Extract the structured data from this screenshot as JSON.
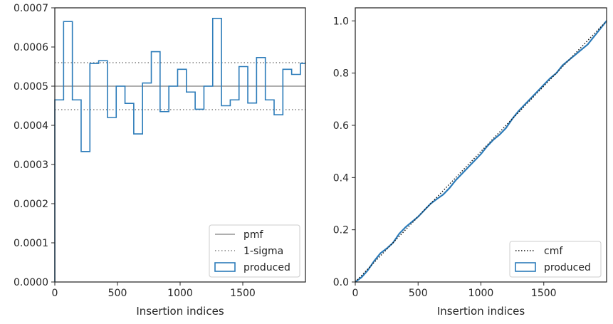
{
  "chart_data": [
    {
      "type": "histogram",
      "title": "",
      "xlabel": "Insertion indices",
      "ylabel": "",
      "xlim": [
        0,
        2000
      ],
      "ylim": [
        0,
        0.0007
      ],
      "xticks": [
        0,
        500,
        1000,
        1500
      ],
      "xtick_labels": [
        "0",
        "500",
        "1000",
        "1500"
      ],
      "yticks": [
        0,
        0.0001,
        0.0002,
        0.0003,
        0.0004,
        0.0005,
        0.0006,
        0.0007
      ],
      "ytick_labels": [
        "0.0000",
        "0.0001",
        "0.0002",
        "0.0003",
        "0.0004",
        "0.0005",
        "0.0006",
        "0.0007"
      ],
      "bin_width": 70,
      "bin_edges": [
        0,
        70,
        140,
        210,
        280,
        350,
        420,
        490,
        560,
        630,
        700,
        770,
        840,
        910,
        980,
        1050,
        1120,
        1190,
        1260,
        1330,
        1400,
        1470,
        1540,
        1610,
        1680,
        1750,
        1820,
        1890,
        1960,
        2000
      ],
      "bin_values": [
        0.000465,
        0.000665,
        0.000465,
        0.000333,
        0.000558,
        0.000565,
        0.00042,
        0.0005,
        0.000456,
        0.000378,
        0.000508,
        0.000588,
        0.000435,
        0.0005,
        0.000543,
        0.000485,
        0.000441,
        0.0005,
        0.000673,
        0.00045,
        0.000465,
        0.00055,
        0.000457,
        0.000573,
        0.000465,
        0.000427,
        0.000543,
        0.00053,
        0.000558
      ],
      "pmf": 0.0005,
      "sigma_lines": [
        0.00044,
        0.00056
      ],
      "series": [
        {
          "name": "pmf",
          "color": "#7f7f7f",
          "style": "solid"
        },
        {
          "name": "1-sigma",
          "color": "#7f7f7f",
          "style": "dotted"
        },
        {
          "name": "produced",
          "color": "#2b7bb9",
          "style": "step"
        }
      ],
      "legend": "lower-right"
    },
    {
      "type": "line",
      "title": "",
      "xlabel": "Insertion indices",
      "ylabel": "",
      "xlim": [
        0,
        2000
      ],
      "ylim": [
        0,
        1.05
      ],
      "xticks": [
        0,
        500,
        1000,
        1500
      ],
      "xtick_labels": [
        "0",
        "500",
        "1000",
        "1500"
      ],
      "yticks": [
        0,
        0.2,
        0.4,
        0.6,
        0.8,
        1.0
      ],
      "ytick_labels": [
        "0.0",
        "0.2",
        "0.4",
        "0.6",
        "0.8",
        "1.0"
      ],
      "cmf_x": [
        0,
        2000
      ],
      "cmf_y": [
        0,
        1
      ],
      "produced_x": [
        0,
        50,
        100,
        150,
        200,
        250,
        300,
        350,
        400,
        450,
        500,
        550,
        600,
        650,
        700,
        750,
        800,
        850,
        900,
        950,
        1000,
        1050,
        1100,
        1150,
        1200,
        1250,
        1300,
        1350,
        1400,
        1450,
        1500,
        1550,
        1600,
        1650,
        1700,
        1750,
        1800,
        1850,
        1900,
        1950,
        2000
      ],
      "produced_y": [
        0,
        0.018,
        0.045,
        0.08,
        0.11,
        0.128,
        0.15,
        0.185,
        0.21,
        0.23,
        0.25,
        0.275,
        0.3,
        0.318,
        0.335,
        0.36,
        0.39,
        0.415,
        0.44,
        0.465,
        0.49,
        0.52,
        0.545,
        0.565,
        0.59,
        0.625,
        0.655,
        0.68,
        0.705,
        0.73,
        0.755,
        0.78,
        0.8,
        0.83,
        0.85,
        0.87,
        0.89,
        0.91,
        0.94,
        0.97,
        1.0
      ],
      "series": [
        {
          "name": "cmf",
          "color": "#111111",
          "style": "dotted"
        },
        {
          "name": "produced",
          "color": "#2b7bb9",
          "style": "step"
        }
      ],
      "legend": "lower-right"
    }
  ]
}
